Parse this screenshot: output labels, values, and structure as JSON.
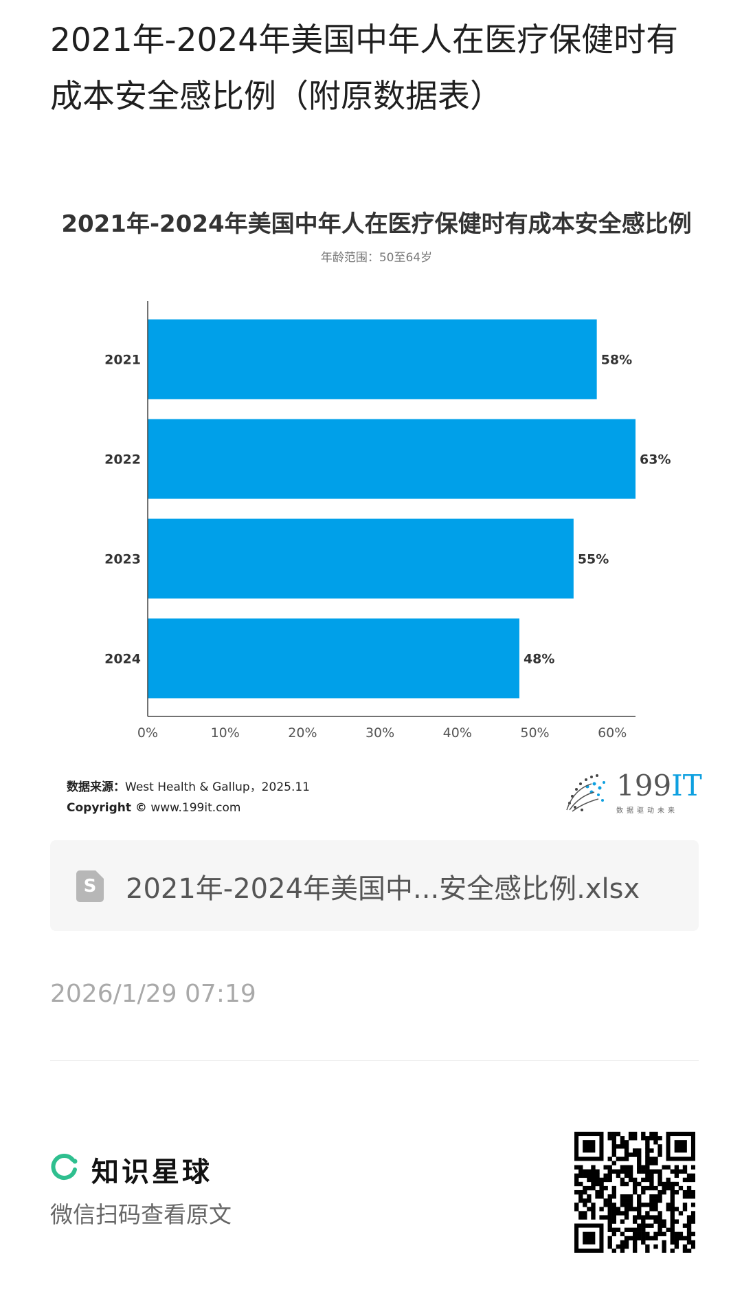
{
  "page": {
    "title": "2021年-2024年美国中年人在医疗保健时有成本安全感比例（附原数据表）"
  },
  "chart_data": {
    "type": "bar",
    "orientation": "horizontal",
    "title": "2021年-2024年美国中年人在医疗保健时有成本安全感比例",
    "subtitle": "年龄范围：50至64岁",
    "categories": [
      "2021",
      "2022",
      "2023",
      "2024"
    ],
    "values": [
      58,
      63,
      55,
      48
    ],
    "value_labels": [
      "58%",
      "63%",
      "55%",
      "48%"
    ],
    "x_ticks": [
      "0%",
      "10%",
      "20%",
      "30%",
      "40%",
      "50%",
      "60%"
    ],
    "xlim": [
      0,
      63
    ],
    "bar_color": "#00A0E9",
    "grid": false,
    "legend": "none"
  },
  "source": {
    "label": "数据来源：",
    "text": "West Health & Gallup，2025.11",
    "copyright_label": "Copyright ©",
    "copyright_text": " www.199it.com"
  },
  "logo": {
    "text_main": "199",
    "text_accent": "IT",
    "tagline": "数据驱动未来"
  },
  "attachment": {
    "icon": "spreadsheet-file-icon",
    "icon_letter": "S",
    "file_name": "2021年-2024年美国中...安全感比例.xlsx"
  },
  "timestamp": "2026/1/29 07:19",
  "footer": {
    "brand_name": "知识星球",
    "brand_icon": "zsxq-ring-icon",
    "brand_color": "#2fbf8f",
    "scan_hint": "微信扫码查看原文",
    "qr_icon": "qr-code-icon"
  }
}
